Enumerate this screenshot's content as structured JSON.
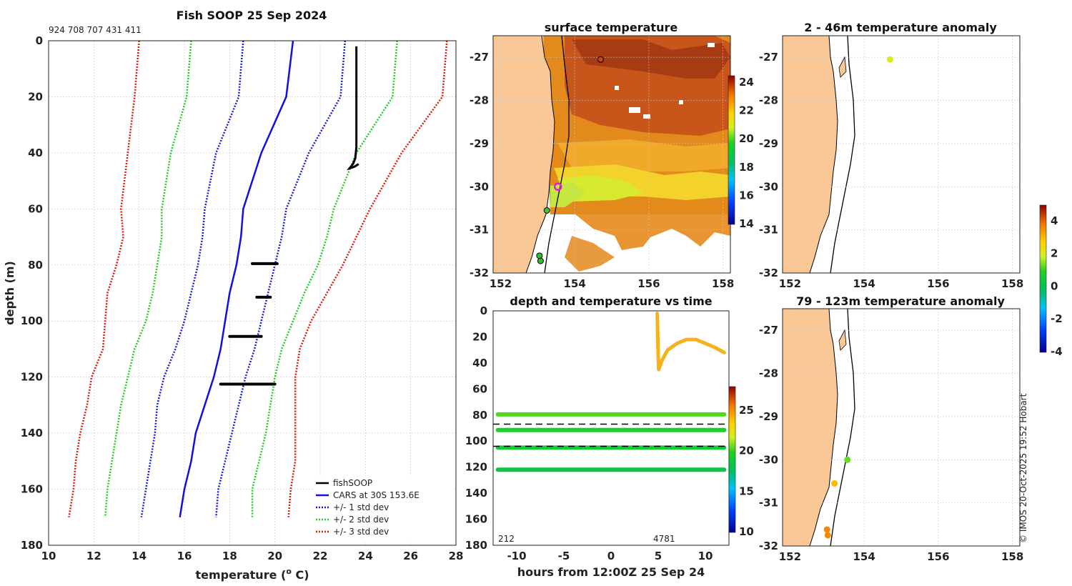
{
  "colors": {
    "land": "#f9c896",
    "cars": "#1010e0",
    "std1": "#1a1ad8",
    "std2": "#22cc22",
    "std3": "#dd1a0a",
    "fish": "#000000",
    "series": "#f6b21a",
    "marker": "#e020e0"
  },
  "chart_data": [
    {
      "type": "line",
      "title": "Fish SOOP 25 Sep 2024",
      "subtitle": "924 708 707 431 411",
      "xlabel": "temperature (o C)",
      "xlabel_main": "temperature (",
      "xlabel_sup": "o",
      "xlabel_end": " C)",
      "ylabel": "depth (m)",
      "xlim": [
        10,
        28
      ],
      "ylim": [
        180,
        0
      ],
      "xticks": [
        "10",
        "12",
        "14",
        "16",
        "18",
        "20",
        "22",
        "24",
        "26",
        "28"
      ],
      "yticks": [
        "0",
        "20",
        "40",
        "60",
        "80",
        "100",
        "120",
        "140",
        "160",
        "180"
      ],
      "legend_position": "bottom-right",
      "legend": [
        "fishSOOP",
        "CARS at 30S 153.6E",
        "+/- 1 std dev",
        "+/- 2 std dev",
        "+/- 3 std dev"
      ],
      "depths": [
        0,
        20,
        40,
        60,
        70,
        80,
        90,
        100,
        110,
        120,
        130,
        140,
        150,
        160,
        170
      ],
      "series": [
        {
          "name": "CARS at 30S 153.6E",
          "values": [
            20.8,
            20.5,
            19.4,
            18.6,
            18.5,
            18.3,
            18.0,
            17.8,
            17.6,
            17.3,
            16.9,
            16.5,
            16.3,
            16.0,
            15.8
          ]
        },
        {
          "name": "-1 std",
          "values": [
            18.6,
            18.4,
            17.4,
            16.9,
            16.8,
            16.6,
            16.3,
            16.0,
            15.6,
            15.1,
            14.8,
            14.7,
            14.5,
            14.3,
            14.1
          ]
        },
        {
          "name": "+1 std",
          "values": [
            23.1,
            22.9,
            21.5,
            20.5,
            20.3,
            20.0,
            19.7,
            19.4,
            19.1,
            18.7,
            18.4,
            18.1,
            17.8,
            17.5,
            17.4
          ]
        },
        {
          "name": "-2 std",
          "values": [
            16.3,
            16.1,
            15.4,
            15.0,
            15.0,
            14.8,
            14.6,
            14.3,
            13.8,
            13.5,
            13.2,
            13.0,
            12.8,
            12.6,
            12.5
          ]
        },
        {
          "name": "+2 std",
          "values": [
            25.4,
            25.2,
            23.6,
            22.6,
            22.3,
            21.9,
            21.3,
            20.8,
            20.3,
            20.0,
            19.8,
            19.6,
            19.3,
            19.0,
            19.0
          ]
        },
        {
          "name": "-3 std",
          "values": [
            14.0,
            13.8,
            13.5,
            13.2,
            13.3,
            13.0,
            12.6,
            12.5,
            12.4,
            11.9,
            11.7,
            11.4,
            11.2,
            11.1,
            10.9
          ]
        },
        {
          "name": "+3 std",
          "values": [
            27.6,
            27.4,
            25.6,
            24.2,
            23.6,
            23.0,
            22.3,
            21.6,
            21.1,
            20.9,
            20.9,
            20.9,
            20.9,
            20.7,
            20.6
          ]
        }
      ],
      "fishSOOP": {
        "profile": [
          [
            23.6,
            2
          ],
          [
            23.6,
            20
          ],
          [
            23.6,
            30
          ],
          [
            23.6,
            38
          ],
          [
            23.55,
            42
          ],
          [
            23.45,
            44
          ],
          [
            23.3,
            45.5
          ],
          [
            23.5,
            45
          ],
          [
            23.7,
            44
          ]
        ],
        "segments": [
          {
            "depth": 79.5,
            "t0": 19.0,
            "t1": 20.1
          },
          {
            "depth": 91.5,
            "t0": 19.2,
            "t1": 19.8
          },
          {
            "depth": 105.5,
            "t0": 18.0,
            "t1": 19.4
          },
          {
            "depth": 122.5,
            "t0": 17.6,
            "t1": 20.0
          }
        ]
      }
    },
    {
      "type": "heatmap",
      "title": "surface temperature",
      "xlim": [
        151.8,
        158.2
      ],
      "ylim": [
        -32,
        -26.5
      ],
      "xticks": [
        "152",
        "154",
        "156",
        "158"
      ],
      "yticks": [
        "-27",
        "-28",
        "-29",
        "-30",
        "-31",
        "-32"
      ],
      "colorbar": {
        "range": [
          14,
          24.5
        ],
        "ticks": [
          "24",
          "22",
          "20",
          "18",
          "16",
          "14"
        ]
      },
      "points": [
        {
          "lon": 154.7,
          "lat": -27.05,
          "color": "#d04010",
          "label": "station"
        },
        {
          "lon": 153.55,
          "lat": -30.0,
          "color": "#e020e0",
          "label": "current"
        },
        {
          "lon": 153.25,
          "lat": -30.55,
          "color": "#40c030",
          "label": "station"
        },
        {
          "lon": 153.05,
          "lat": -31.6,
          "color": "#30c030",
          "label": "station"
        },
        {
          "lon": 153.08,
          "lat": -31.72,
          "color": "#30c030",
          "label": "station"
        }
      ]
    },
    {
      "type": "scatter",
      "title": "2 - 46m temperature anomaly",
      "xlim": [
        151.8,
        158.2
      ],
      "ylim": [
        -32,
        -26.5
      ],
      "xticks": [
        "152",
        "154",
        "156",
        "158"
      ],
      "yticks": [
        "-27",
        "-28",
        "-29",
        "-30",
        "-31",
        "-32"
      ],
      "points": [
        {
          "lon": 154.7,
          "lat": -27.05,
          "anomaly": 2.0
        }
      ]
    },
    {
      "type": "scatter",
      "title": "79 - 123m temperature anomaly",
      "xlim": [
        151.8,
        158.2
      ],
      "ylim": [
        -32,
        -26.5
      ],
      "xticks": [
        "152",
        "154",
        "156",
        "158"
      ],
      "yticks": [
        "-27",
        "-28",
        "-29",
        "-30",
        "-31",
        "-32"
      ],
      "points": [
        {
          "lon": 153.55,
          "lat": -30.0,
          "anomaly": 1.3
        },
        {
          "lon": 153.2,
          "lat": -30.55,
          "anomaly": 3.0
        },
        {
          "lon": 153.0,
          "lat": -31.62,
          "anomaly": 3.6
        },
        {
          "lon": 153.02,
          "lat": -31.75,
          "anomaly": 3.6
        }
      ]
    },
    {
      "type": "scatter",
      "title": "depth and temperature vs time",
      "xlabel": "hours from 12:00Z 25 Sep 24",
      "xlim": [
        -12.5,
        12.5
      ],
      "ylim": [
        180,
        0
      ],
      "xticks": [
        "-10",
        "-5",
        "0",
        "5",
        "10"
      ],
      "yticks": [
        "0",
        "20",
        "40",
        "60",
        "80",
        "100",
        "120",
        "140",
        "160",
        "180"
      ],
      "annotations": [
        "212",
        "4781"
      ],
      "reference_depths": [
        87,
        104
      ],
      "colorbar": {
        "range": [
          10,
          28
        ],
        "ticks": [
          "25",
          "20",
          "15",
          "10"
        ]
      },
      "bands": [
        {
          "depth": 79.5,
          "temp": 20.4
        },
        {
          "depth": 91.5,
          "temp": 19.6
        },
        {
          "depth": 105,
          "temp": 19.0
        },
        {
          "depth": 122,
          "temp": 18.4
        }
      ],
      "surface_trace": [
        [
          4.9,
          2
        ],
        [
          4.95,
          20
        ],
        [
          5.0,
          35
        ],
        [
          5.05,
          45
        ],
        [
          5.4,
          38
        ],
        [
          6.0,
          30
        ],
        [
          7.0,
          25
        ],
        [
          8.0,
          22
        ],
        [
          9.0,
          22
        ],
        [
          10.0,
          25
        ],
        [
          11.0,
          28
        ],
        [
          11.5,
          30
        ],
        [
          12.0,
          32
        ]
      ]
    }
  ],
  "anomaly_colorbar": {
    "range": [
      -4,
      5
    ],
    "ticks": [
      "4",
      "2",
      "0",
      "-2",
      "-4"
    ]
  },
  "credit": "© IMOS 20-Oct-2025 19:52 Hobart"
}
